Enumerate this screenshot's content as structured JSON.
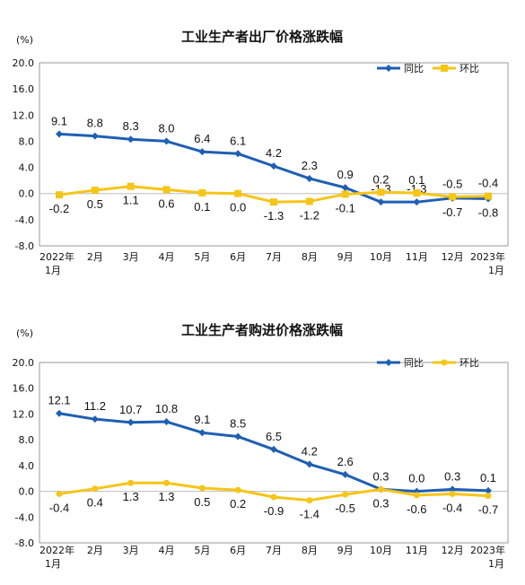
{
  "chart_data": [
    {
      "type": "line",
      "title": "工业生产者出厂价格涨跌幅",
      "unit": "(%)",
      "categories": [
        "2022年\n1月",
        "2月",
        "3月",
        "4月",
        "5月",
        "6月",
        "7月",
        "8月",
        "9月",
        "10月",
        "11月",
        "12月",
        "2023年\n1月"
      ],
      "ylim": [
        -8.0,
        20.0
      ],
      "yticks": [
        "20.0",
        "16.0",
        "12.0",
        "8.0",
        "4.0",
        "0.0",
        "-4.0",
        "-8.0"
      ],
      "ytick_values": [
        20,
        16,
        12,
        8,
        4,
        0,
        -4,
        -8
      ],
      "grid": false,
      "legend": "top-right",
      "series": [
        {
          "name": "同比",
          "color": "#1f5fb4",
          "marker": "diamond",
          "values": [
            9.1,
            8.8,
            8.3,
            8.0,
            6.4,
            6.1,
            4.2,
            2.3,
            0.9,
            -1.3,
            -1.3,
            -0.7,
            -0.8
          ],
          "labels": [
            "9.1",
            "8.8",
            "8.3",
            "8.0",
            "6.4",
            "6.1",
            "4.2",
            "2.3",
            "0.9",
            "-1.3",
            "-1.3",
            "-0.7",
            "-0.8"
          ]
        },
        {
          "name": "环比",
          "color": "#f5c518",
          "marker": "square",
          "values": [
            -0.2,
            0.5,
            1.1,
            0.6,
            0.1,
            0.0,
            -1.3,
            -1.2,
            -0.1,
            0.2,
            0.1,
            -0.5,
            -0.4
          ],
          "labels": [
            "-0.2",
            "0.5",
            "1.1",
            "0.6",
            "0.1",
            "0.0",
            "-1.3",
            "-1.2",
            "-0.1",
            "0.2",
            "0.1",
            "-0.5",
            "-0.4"
          ]
        }
      ]
    },
    {
      "type": "line",
      "title": "工业生产者购进价格涨跌幅",
      "unit": "(%)",
      "categories": [
        "2022年\n1月",
        "2月",
        "3月",
        "4月",
        "5月",
        "6月",
        "7月",
        "8月",
        "9月",
        "10月",
        "11月",
        "12月",
        "2023年\n1月"
      ],
      "ylim": [
        -8.0,
        20.0
      ],
      "yticks": [
        "20.0",
        "16.0",
        "12.0",
        "8.0",
        "4.0",
        "0.0",
        "-4.0",
        "-8.0"
      ],
      "ytick_values": [
        20,
        16,
        12,
        8,
        4,
        0,
        -4,
        -8
      ],
      "grid": false,
      "legend": "top-right",
      "series": [
        {
          "name": "同比",
          "color": "#1f5fb4",
          "marker": "diamond",
          "values": [
            12.1,
            11.2,
            10.7,
            10.8,
            9.1,
            8.5,
            6.5,
            4.2,
            2.6,
            0.3,
            0.0,
            0.3,
            0.1
          ],
          "labels": [
            "12.1",
            "11.2",
            "10.7",
            "10.8",
            "9.1",
            "8.5",
            "6.5",
            "4.2",
            "2.6",
            "0.3",
            "0.0",
            "0.3",
            "0.1"
          ]
        },
        {
          "name": "环比",
          "color": "#f5c518",
          "marker": "circle",
          "values": [
            -0.4,
            0.4,
            1.3,
            1.3,
            0.5,
            0.2,
            -0.9,
            -1.4,
            -0.5,
            0.3,
            -0.6,
            -0.4,
            -0.7
          ],
          "labels": [
            "-0.4",
            "0.4",
            "1.3",
            "1.3",
            "0.5",
            "0.2",
            "-0.9",
            "-1.4",
            "-0.5",
            "0.3",
            "-0.6",
            "-0.4",
            "-0.7"
          ]
        }
      ]
    }
  ]
}
